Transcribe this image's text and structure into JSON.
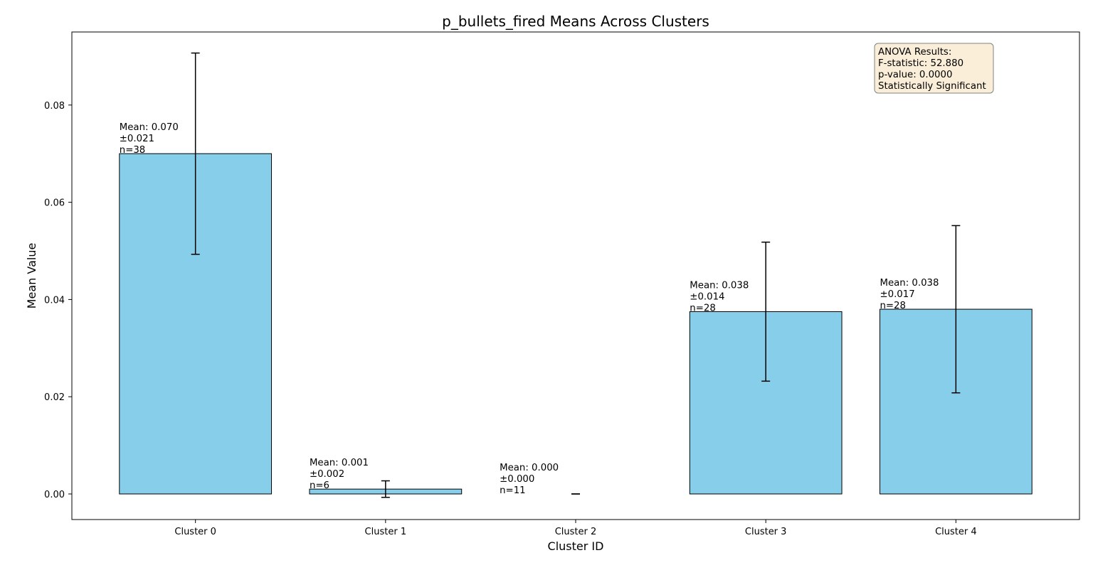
{
  "chart_data": {
    "type": "bar",
    "title": "p_bullets_fired Means Across Clusters",
    "xlabel": "Cluster ID",
    "ylabel": "Mean Value",
    "ylim": [
      -0.0053,
      0.0947
    ],
    "yticks": [
      "0.00",
      "0.02",
      "0.04",
      "0.06",
      "0.08"
    ],
    "ytick_values": [
      0.0,
      0.02,
      0.04,
      0.06,
      0.08
    ],
    "categories": [
      "Cluster 0",
      "Cluster 1",
      "Cluster 2",
      "Cluster 3",
      "Cluster 4"
    ],
    "values": [
      0.07,
      0.001,
      0.0,
      0.0375,
      0.038
    ],
    "errors": [
      0.0207,
      0.0017,
      0.0,
      0.0143,
      0.0172
    ],
    "annotations": [
      [
        "Mean: 0.070",
        "±0.021",
        "n=38"
      ],
      [
        "Mean: 0.001",
        "±0.002",
        "n=6"
      ],
      [
        "Mean: 0.000",
        "±0.000",
        "n=11"
      ],
      [
        "Mean: 0.038",
        "±0.014",
        "n=28"
      ],
      [
        "Mean: 0.038",
        "±0.017",
        "n=28"
      ]
    ],
    "anova_box": [
      "ANOVA Results:",
      "F-statistic: 52.880",
      "p-value: 0.0000",
      "Statistically Significant"
    ],
    "bar_color": "#87ceeb",
    "edge_color": "#000000",
    "anova_box_fill": "#f5deb3",
    "anova_box_edge": "#808080",
    "grid": false,
    "legend": "none"
  }
}
